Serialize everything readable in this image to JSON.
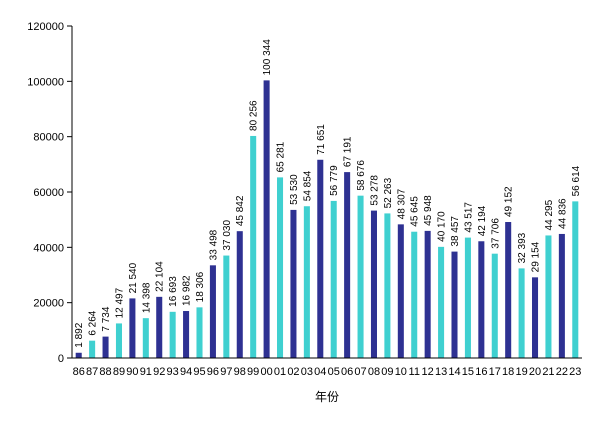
{
  "chart_data": {
    "type": "bar",
    "xlabel": "年份",
    "ylabel": "",
    "title": "",
    "ylim": [
      0,
      120000
    ],
    "yticks": [
      0,
      20000,
      40000,
      60000,
      80000,
      100000,
      120000
    ],
    "ytick_labels": [
      "0",
      "20000",
      "40000",
      "60000",
      "80000",
      "100000",
      "120000"
    ],
    "grid": false,
    "legend": "none",
    "categories": [
      "86",
      "87",
      "88",
      "89",
      "90",
      "91",
      "92",
      "93",
      "94",
      "95",
      "96",
      "97",
      "98",
      "99",
      "00",
      "01",
      "02",
      "03",
      "04",
      "05",
      "06",
      "07",
      "08",
      "09",
      "10",
      "11",
      "12",
      "13",
      "14",
      "15",
      "16",
      "17",
      "18",
      "19",
      "20",
      "21",
      "22",
      "23"
    ],
    "values": [
      1892,
      6264,
      7734,
      12497,
      21540,
      14398,
      22104,
      16693,
      16982,
      18306,
      33498,
      37030,
      45842,
      80256,
      100344,
      65281,
      53530,
      54854,
      71651,
      56779,
      67191,
      58676,
      53278,
      52263,
      48307,
      45645,
      45948,
      40170,
      38457,
      43517,
      42194,
      37706,
      49152,
      32393,
      29154,
      44295,
      44836,
      56614
    ],
    "value_labels": [
      "1 892",
      "6 264",
      "7 734",
      "12 497",
      "21 540",
      "14 398",
      "22 104",
      "16 693",
      "16 982",
      "18 306",
      "33 498",
      "37 030",
      "45 842",
      "80 256",
      "100 344",
      "65 281",
      "53 530",
      "54 854",
      "71 651",
      "56 779",
      "67 191",
      "58 676",
      "53 278",
      "52 263",
      "48 307",
      "45 645",
      "45 948",
      "40 170",
      "38 457",
      "43 517",
      "42 194",
      "37 706",
      "49 152",
      "32 393",
      "29 154",
      "44 295",
      "44 836",
      "56 614"
    ],
    "colors": [
      "navy",
      "teal",
      "navy",
      "teal",
      "navy",
      "teal",
      "navy",
      "teal",
      "navy",
      "teal",
      "navy",
      "teal",
      "navy",
      "teal",
      "navy",
      "teal",
      "navy",
      "teal",
      "navy",
      "teal",
      "navy",
      "teal",
      "navy",
      "teal",
      "navy",
      "teal",
      "navy",
      "teal",
      "navy",
      "teal",
      "navy",
      "teal",
      "navy",
      "teal",
      "navy",
      "teal",
      "navy",
      "teal"
    ],
    "palette": {
      "navy": "#2e3192",
      "teal": "#3fd0d0"
    }
  }
}
